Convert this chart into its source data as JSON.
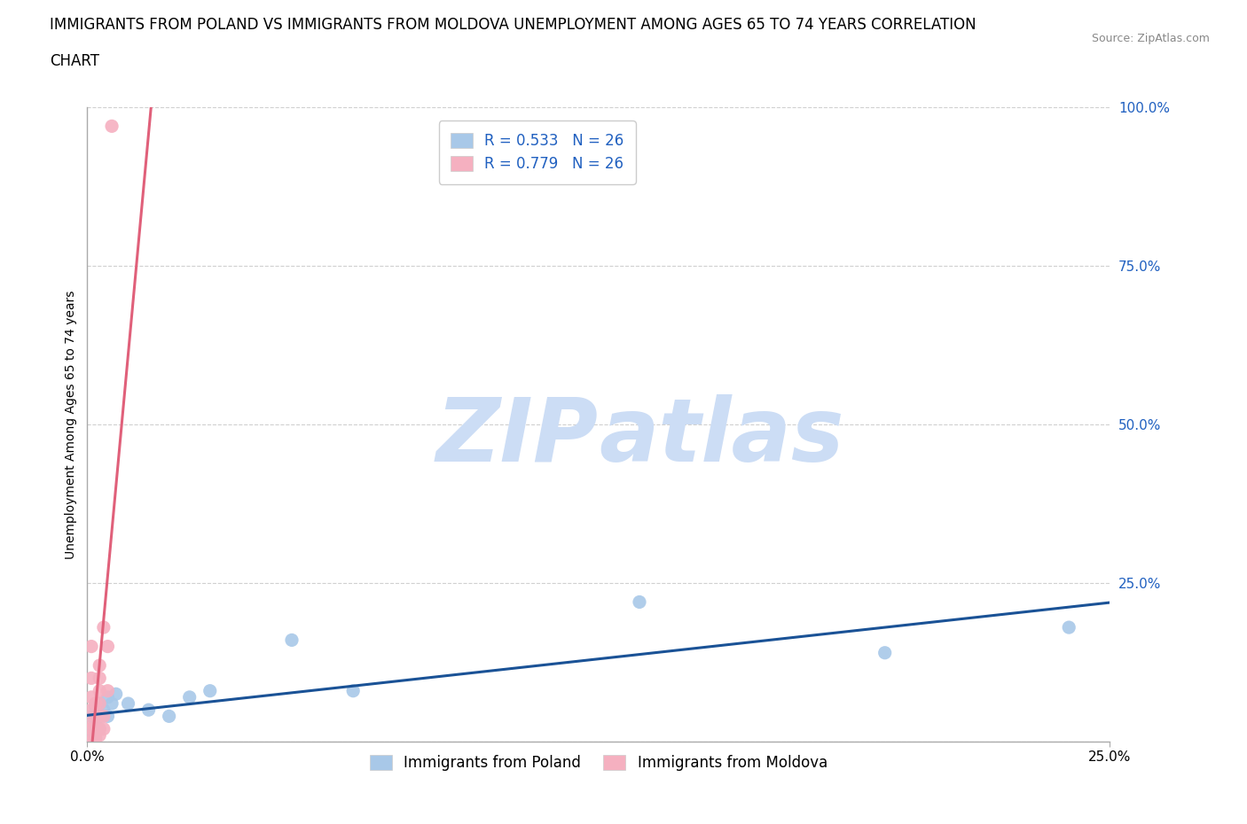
{
  "title_line1": "IMMIGRANTS FROM POLAND VS IMMIGRANTS FROM MOLDOVA UNEMPLOYMENT AMONG AGES 65 TO 74 YEARS CORRELATION",
  "title_line2": "CHART",
  "source": "Source: ZipAtlas.com",
  "ylabel": "Unemployment Among Ages 65 to 74 years",
  "xlim": [
    0.0,
    0.25
  ],
  "ylim": [
    0.0,
    1.0
  ],
  "poland_R": 0.533,
  "poland_N": 26,
  "moldova_R": 0.779,
  "moldova_N": 26,
  "poland_dot_color": "#a8c8e8",
  "moldova_dot_color": "#f5b0c0",
  "poland_line_color": "#1a5296",
  "moldova_line_color": "#e0607a",
  "poland_label": "Immigrants from Poland",
  "moldova_label": "Immigrants from Moldova",
  "watermark_zip": "ZIP",
  "watermark_atlas": "atlas",
  "watermark_color": "#ccddf5",
  "poland_x": [
    0.001,
    0.001,
    0.001,
    0.001,
    0.002,
    0.002,
    0.002,
    0.002,
    0.003,
    0.003,
    0.003,
    0.004,
    0.005,
    0.005,
    0.006,
    0.007,
    0.01,
    0.015,
    0.02,
    0.025,
    0.03,
    0.05,
    0.065,
    0.135,
    0.195,
    0.24
  ],
  "poland_y": [
    0.0,
    0.01,
    0.02,
    0.04,
    0.005,
    0.015,
    0.03,
    0.055,
    0.02,
    0.04,
    0.06,
    0.05,
    0.04,
    0.07,
    0.06,
    0.075,
    0.06,
    0.05,
    0.04,
    0.07,
    0.08,
    0.16,
    0.08,
    0.22,
    0.14,
    0.18
  ],
  "moldova_x": [
    0.001,
    0.001,
    0.001,
    0.001,
    0.001,
    0.001,
    0.001,
    0.001,
    0.002,
    0.002,
    0.002,
    0.002,
    0.002,
    0.003,
    0.003,
    0.003,
    0.003,
    0.003,
    0.003,
    0.003,
    0.004,
    0.004,
    0.004,
    0.005,
    0.005,
    0.006
  ],
  "moldova_y": [
    0.0,
    0.01,
    0.02,
    0.03,
    0.05,
    0.07,
    0.1,
    0.15,
    0.0,
    0.01,
    0.02,
    0.04,
    0.06,
    0.01,
    0.02,
    0.04,
    0.06,
    0.08,
    0.1,
    0.12,
    0.02,
    0.04,
    0.18,
    0.08,
    0.15,
    0.97
  ],
  "title_fontsize": 12,
  "axis_label_fontsize": 10,
  "tick_fontsize": 11,
  "legend_fontsize": 12,
  "source_fontsize": 9
}
